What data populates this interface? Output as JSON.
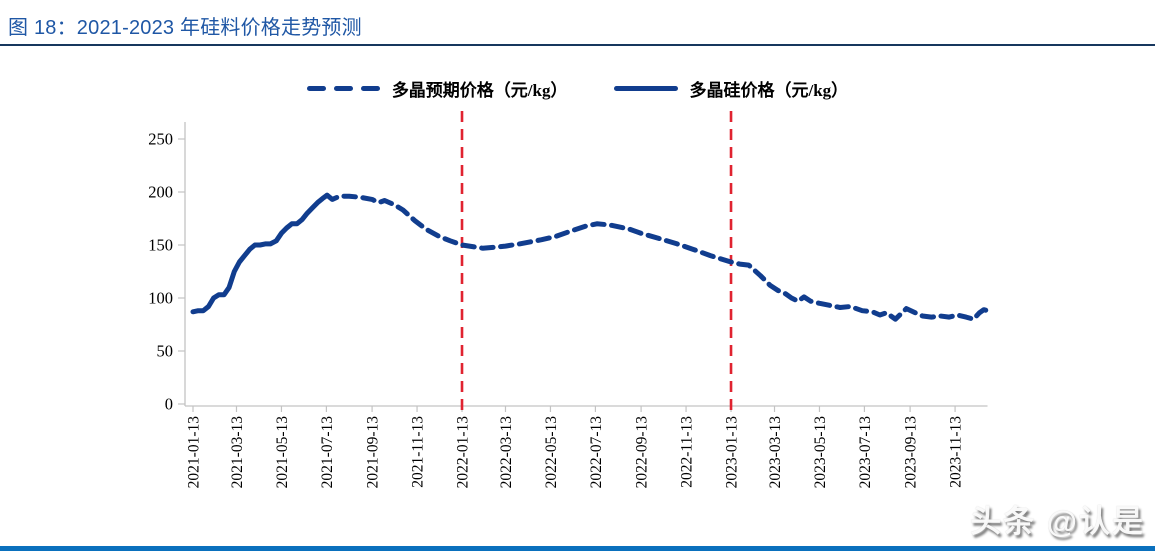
{
  "header": {
    "title": "图 18：2021-2023 年硅料价格走势预测",
    "title_color": "#1f57a5",
    "divider_color": "#17375e"
  },
  "footer": {
    "watermark": "头条 @认是",
    "bar_color": "#0a70bd"
  },
  "chart_data": {
    "type": "line",
    "title": "2021-2023 年硅料价格走势预测",
    "xlabel": "",
    "ylabel": "",
    "ylim": [
      0,
      250
    ],
    "y_ticks": [
      0,
      50,
      100,
      150,
      200,
      250
    ],
    "x_domain": [
      "2021-01-13",
      "2023-12-27"
    ],
    "x_ticks": [
      "2021-01-13",
      "2021-03-13",
      "2021-05-13",
      "2021-07-13",
      "2021-09-13",
      "2021-11-13",
      "2022-01-13",
      "2022-03-13",
      "2022-05-13",
      "2022-07-13",
      "2022-09-13",
      "2022-11-13",
      "2023-01-13",
      "2023-03-13",
      "2023-05-13",
      "2023-07-13",
      "2023-09-13",
      "2023-11-13"
    ],
    "grid": false,
    "legend_position": "top-center",
    "axis_color": "#c3c3c3",
    "line_color": "#113d8e",
    "vline_color": "#e02330",
    "vlines": [
      "2022-01-13",
      "2023-01-13"
    ],
    "series": [
      {
        "name": "多晶预期价格（元/kg）",
        "style": "dashed",
        "points": [
          [
            "2021-07-14",
            197
          ],
          [
            "2021-07-21",
            193
          ],
          [
            "2021-07-31",
            196
          ],
          [
            "2021-08-13",
            196
          ],
          [
            "2021-08-28",
            195
          ],
          [
            "2021-09-13",
            193
          ],
          [
            "2021-09-22",
            190
          ],
          [
            "2021-09-30",
            192
          ],
          [
            "2021-10-13",
            188
          ],
          [
            "2021-10-25",
            183
          ],
          [
            "2021-11-10",
            173
          ],
          [
            "2021-11-25",
            165
          ],
          [
            "2021-12-13",
            158
          ],
          [
            "2021-12-28",
            154
          ],
          [
            "2022-01-13",
            150
          ],
          [
            "2022-02-10",
            147
          ],
          [
            "2022-03-01",
            148
          ],
          [
            "2022-03-13",
            149
          ],
          [
            "2022-04-01",
            151
          ],
          [
            "2022-05-01",
            155
          ],
          [
            "2022-05-20",
            158
          ],
          [
            "2022-06-13",
            164
          ],
          [
            "2022-07-01",
            168
          ],
          [
            "2022-07-15",
            170
          ],
          [
            "2022-08-01",
            169
          ],
          [
            "2022-08-28",
            165
          ],
          [
            "2022-09-13",
            161
          ],
          [
            "2022-10-08",
            156
          ],
          [
            "2022-11-01",
            151
          ],
          [
            "2022-11-22",
            146
          ],
          [
            "2022-12-16",
            140
          ],
          [
            "2023-01-13",
            134
          ],
          [
            "2023-01-25",
            132
          ],
          [
            "2023-02-06",
            131
          ],
          [
            "2023-02-22",
            121
          ],
          [
            "2023-03-07",
            112
          ],
          [
            "2023-03-18",
            107
          ],
          [
            "2023-03-28",
            104
          ],
          [
            "2023-04-05",
            100
          ],
          [
            "2023-04-14",
            97
          ],
          [
            "2023-04-22",
            101
          ],
          [
            "2023-05-01",
            97
          ],
          [
            "2023-05-13",
            95
          ],
          [
            "2023-05-27",
            93
          ],
          [
            "2023-06-10",
            91
          ],
          [
            "2023-06-24",
            92
          ],
          [
            "2023-07-10",
            88
          ],
          [
            "2023-07-24",
            87
          ],
          [
            "2023-08-03",
            84
          ],
          [
            "2023-08-12",
            86
          ],
          [
            "2023-08-24",
            80
          ],
          [
            "2023-09-08",
            90
          ],
          [
            "2023-09-20",
            86
          ],
          [
            "2023-09-30",
            83
          ],
          [
            "2023-10-12",
            82
          ],
          [
            "2023-10-24",
            83
          ],
          [
            "2023-11-05",
            82
          ],
          [
            "2023-11-16",
            84
          ],
          [
            "2023-11-28",
            82
          ],
          [
            "2023-12-08",
            80
          ],
          [
            "2023-12-16",
            86
          ],
          [
            "2023-12-22",
            89
          ],
          [
            "2023-12-27",
            88
          ]
        ]
      },
      {
        "name": "多晶硅价格（元/kg）",
        "style": "solid",
        "points": [
          [
            "2021-01-13",
            87
          ],
          [
            "2021-01-20",
            88
          ],
          [
            "2021-01-27",
            88
          ],
          [
            "2021-02-03",
            92
          ],
          [
            "2021-02-10",
            100
          ],
          [
            "2021-02-17",
            103
          ],
          [
            "2021-02-24",
            103
          ],
          [
            "2021-03-03",
            110
          ],
          [
            "2021-03-10",
            125
          ],
          [
            "2021-03-17",
            134
          ],
          [
            "2021-03-24",
            140
          ],
          [
            "2021-03-31",
            146
          ],
          [
            "2021-04-07",
            150
          ],
          [
            "2021-04-14",
            150
          ],
          [
            "2021-04-21",
            151
          ],
          [
            "2021-04-28",
            151
          ],
          [
            "2021-05-06",
            154
          ],
          [
            "2021-05-13",
            161
          ],
          [
            "2021-05-20",
            166
          ],
          [
            "2021-05-27",
            170
          ],
          [
            "2021-06-03",
            170
          ],
          [
            "2021-06-10",
            174
          ],
          [
            "2021-06-17",
            180
          ],
          [
            "2021-06-24",
            185
          ],
          [
            "2021-07-01",
            190
          ],
          [
            "2021-07-08",
            194
          ],
          [
            "2021-07-14",
            197
          ]
        ]
      }
    ]
  }
}
